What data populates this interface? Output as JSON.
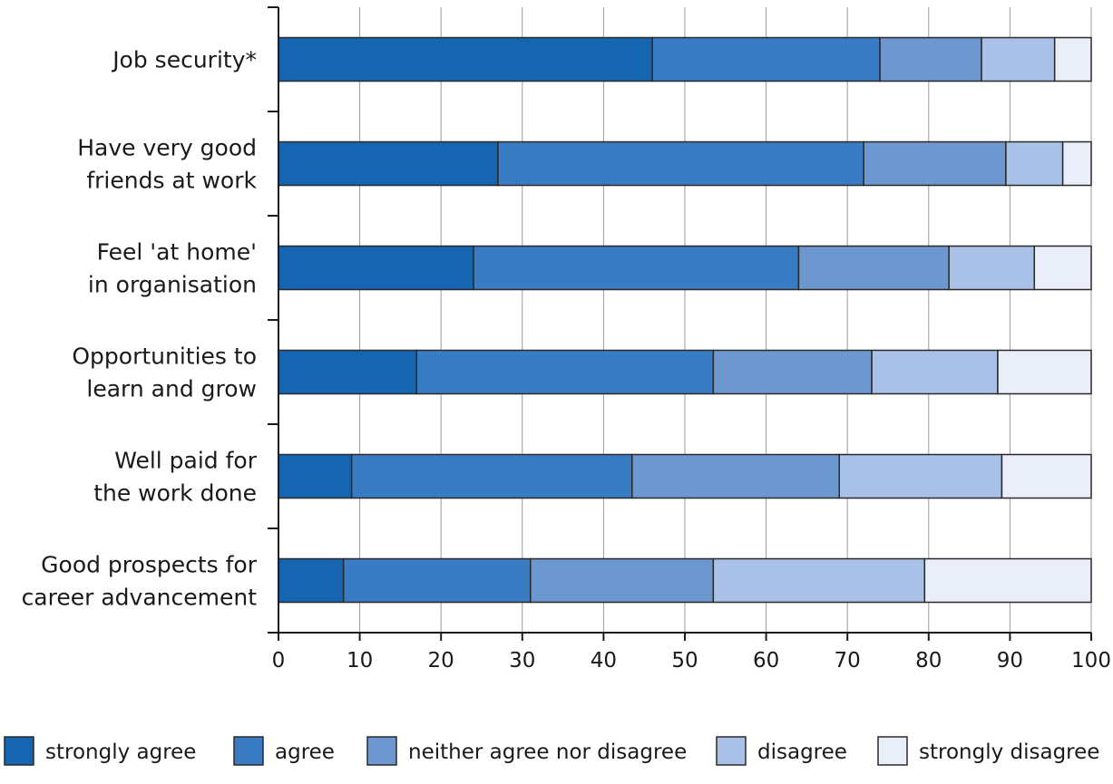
{
  "chart_data": {
    "type": "bar",
    "orientation": "horizontal",
    "stacked": true,
    "categories": [
      [
        "Job security*"
      ],
      [
        "Have very good",
        "friends at work"
      ],
      [
        "Feel 'at home'",
        "in organisation"
      ],
      [
        "Opportunities to",
        "learn and grow"
      ],
      [
        "Well paid for",
        "the work done"
      ],
      [
        "Good prospects for",
        "career advancement"
      ]
    ],
    "series": [
      {
        "name": "strongly agree",
        "color": "#1565b0",
        "values": [
          46,
          27,
          24,
          17,
          9,
          8
        ]
      },
      {
        "name": "agree",
        "color": "#3a7cc4",
        "values": [
          28,
          45,
          40,
          36.5,
          34.5,
          23
        ]
      },
      {
        "name": "neither agree nor disagree",
        "color": "#6d98cf",
        "values": [
          12.5,
          17.5,
          18.5,
          19.5,
          25.5,
          22.5
        ]
      },
      {
        "name": "disagree",
        "color": "#a9c1e6",
        "values": [
          9,
          7,
          10.5,
          15.5,
          20,
          26
        ]
      },
      {
        "name": "strongly disagree",
        "color": "#eaeef8",
        "values": [
          4.5,
          3.5,
          7,
          11.5,
          11.5,
          20.5
        ]
      }
    ],
    "x_ticks": [
      "0",
      "10",
      "20",
      "30",
      "40",
      "50",
      "60",
      "70",
      "80",
      "90",
      "100"
    ],
    "xlim": [
      0,
      100
    ],
    "grid": true,
    "legend_position": "bottom"
  }
}
